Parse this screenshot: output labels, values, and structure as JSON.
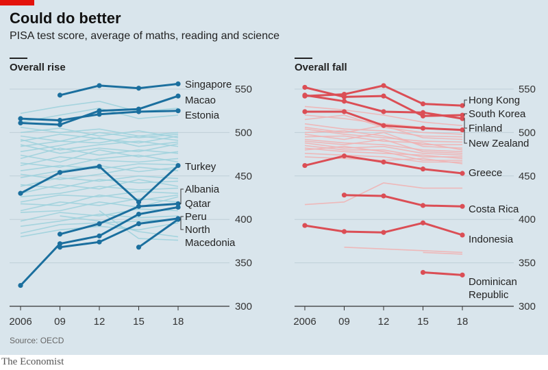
{
  "header": {
    "title": "Could do better",
    "subtitle": "PISA test score, average of maths, reading and science"
  },
  "footer": {
    "source": "Source: OECD",
    "brand": "The Economist"
  },
  "colors": {
    "rise_highlight": "#1b6f9e",
    "rise_background": "#9fd2dd",
    "fall_highlight": "#db4e55",
    "fall_background": "#f0b3b4",
    "gridline": "#bfcfd8",
    "background": "#d9e5ec",
    "brand_tag": "#e3120b"
  },
  "chart_data": [
    {
      "type": "line",
      "panel_title": "Overall rise",
      "x_ticks": [
        "2006",
        "09",
        "12",
        "15",
        "18"
      ],
      "x": [
        2006,
        2009,
        2012,
        2015,
        2018
      ],
      "y_ticks": [
        300,
        350,
        400,
        450,
        500,
        550
      ],
      "ylim": [
        300,
        560
      ],
      "grid": true,
      "series": [
        {
          "name": "Singapore",
          "highlight": true,
          "values": [
            null,
            543,
            554,
            551,
            556
          ]
        },
        {
          "name": "Macao",
          "highlight": true,
          "values": [
            511,
            509,
            525,
            527,
            542
          ]
        },
        {
          "name": "Estonia",
          "highlight": true,
          "values": [
            516,
            514,
            521,
            524,
            525
          ]
        },
        {
          "name": "Turkey",
          "highlight": true,
          "values": [
            430,
            454,
            461,
            420,
            462
          ]
        },
        {
          "name": "Albania",
          "highlight": true,
          "values": [
            null,
            383,
            395,
            415,
            418
          ]
        },
        {
          "name": "Qatar",
          "highlight": true,
          "values": [
            324,
            372,
            381,
            406,
            414
          ]
        },
        {
          "name": "Peru",
          "highlight": true,
          "values": [
            null,
            368,
            374,
            395,
            401
          ]
        },
        {
          "name": "North Macedonia",
          "highlight": true,
          "values": [
            null,
            null,
            null,
            368,
            400
          ]
        },
        {
          "values": [
            506,
            500,
            504,
            496,
            500
          ]
        },
        {
          "values": [
            500,
            505,
            496,
            502,
            494
          ]
        },
        {
          "values": [
            496,
            490,
            500,
            494,
            498
          ]
        },
        {
          "values": [
            490,
            498,
            493,
            488,
            496
          ]
        },
        {
          "values": [
            484,
            490,
            488,
            496,
            491
          ]
        },
        {
          "values": [
            478,
            485,
            494,
            484,
            489
          ]
        },
        {
          "values": [
            492,
            480,
            486,
            490,
            484
          ]
        },
        {
          "values": [
            486,
            476,
            482,
            478,
            487
          ]
        },
        {
          "values": [
            470,
            482,
            474,
            480,
            476
          ]
        },
        {
          "values": [
            474,
            466,
            480,
            472,
            478
          ]
        },
        {
          "values": [
            462,
            472,
            468,
            466,
            470
          ]
        },
        {
          "values": [
            465,
            460,
            470,
            474,
            466
          ]
        },
        {
          "values": [
            456,
            462,
            458,
            464,
            463
          ]
        },
        {
          "values": [
            448,
            456,
            462,
            455,
            460
          ]
        },
        {
          "values": [
            452,
            446,
            452,
            460,
            456
          ]
        },
        {
          "values": [
            438,
            448,
            444,
            450,
            447
          ]
        },
        {
          "values": [
            440,
            436,
            446,
            442,
            444
          ]
        },
        {
          "values": [
            430,
            440,
            435,
            446,
            438
          ]
        },
        {
          "values": [
            426,
            430,
            438,
            434,
            436
          ]
        },
        {
          "values": [
            420,
            428,
            426,
            432,
            430
          ]
        },
        {
          "values": [
            418,
            416,
            428,
            422,
            428
          ]
        },
        {
          "values": [
            410,
            420,
            416,
            424,
            420
          ]
        },
        {
          "values": [
            408,
            410,
            420,
            414,
            426
          ]
        },
        {
          "values": [
            398,
            408,
            404,
            412,
            410
          ]
        },
        {
          "values": [
            392,
            398,
            406,
            402,
            404
          ]
        },
        {
          "values": [
            384,
            394,
            396,
            398,
            400
          ]
        },
        {
          "values": [
            380,
            388,
            392,
            388,
            396
          ]
        },
        {
          "values": [
            null,
            404,
            398,
            386,
            380
          ]
        },
        {
          "values": [
            null,
            null,
            410,
            378,
            376
          ]
        },
        {
          "values": [
            522,
            530,
            536,
            524,
            528
          ]
        },
        {
          "values": [
            512,
            520,
            528,
            516,
            520
          ]
        }
      ]
    },
    {
      "type": "line",
      "panel_title": "Overall fall",
      "x_ticks": [
        "2006",
        "09",
        "12",
        "15",
        "18"
      ],
      "x": [
        2006,
        2009,
        2012,
        2015,
        2018
      ],
      "y_ticks": [
        300,
        350,
        400,
        450,
        500,
        550
      ],
      "ylim": [
        300,
        560
      ],
      "grid": true,
      "series": [
        {
          "name": "Hong Kong",
          "highlight": true,
          "values": [
            542,
            544,
            554,
            533,
            531
          ]
        },
        {
          "name": "South Korea",
          "highlight": true,
          "values": [
            552,
            541,
            542,
            519,
            520
          ]
        },
        {
          "name": "Finland",
          "highlight": true,
          "values": [
            543,
            536,
            524,
            523,
            516
          ]
        },
        {
          "name": "New Zealand",
          "highlight": true,
          "values": [
            524,
            524,
            508,
            505,
            503
          ]
        },
        {
          "name": "Greece",
          "highlight": true,
          "values": [
            462,
            473,
            466,
            458,
            453
          ]
        },
        {
          "name": "Costa Rica",
          "highlight": true,
          "values": [
            null,
            428,
            427,
            416,
            415
          ]
        },
        {
          "name": "Indonesia",
          "highlight": true,
          "values": [
            393,
            386,
            385,
            396,
            382
          ]
        },
        {
          "name": "Dominican Republic",
          "highlight": true,
          "values": [
            null,
            null,
            null,
            339,
            336
          ]
        },
        {
          "values": [
            530,
            526,
            520,
            512,
            508
          ]
        },
        {
          "values": [
            520,
            516,
            510,
            506,
            502
          ]
        },
        {
          "values": [
            515,
            520,
            506,
            500,
            498
          ]
        },
        {
          "values": [
            510,
            504,
            502,
            496,
            495
          ]
        },
        {
          "values": [
            506,
            500,
            508,
            494,
            492
          ]
        },
        {
          "values": [
            504,
            498,
            494,
            490,
            489
          ]
        },
        {
          "values": [
            500,
            502,
            496,
            486,
            486
          ]
        },
        {
          "values": [
            498,
            492,
            500,
            484,
            482
          ]
        },
        {
          "values": [
            495,
            496,
            490,
            488,
            480
          ]
        },
        {
          "values": [
            492,
            488,
            486,
            480,
            478
          ]
        },
        {
          "values": [
            490,
            486,
            492,
            478,
            476
          ]
        },
        {
          "values": [
            488,
            482,
            484,
            476,
            474
          ]
        },
        {
          "values": [
            485,
            480,
            480,
            472,
            472
          ]
        },
        {
          "values": [
            482,
            478,
            476,
            474,
            470
          ]
        },
        {
          "values": [
            480,
            484,
            478,
            468,
            468
          ]
        },
        {
          "values": [
            476,
            474,
            472,
            466,
            466
          ]
        },
        {
          "values": [
            472,
            470,
            468,
            470,
            464
          ]
        },
        {
          "values": [
            417,
            420,
            442,
            436,
            436
          ]
        },
        {
          "values": [
            null,
            368,
            366,
            364,
            362
          ]
        },
        {
          "values": [
            null,
            null,
            null,
            362,
            360
          ]
        }
      ]
    }
  ]
}
